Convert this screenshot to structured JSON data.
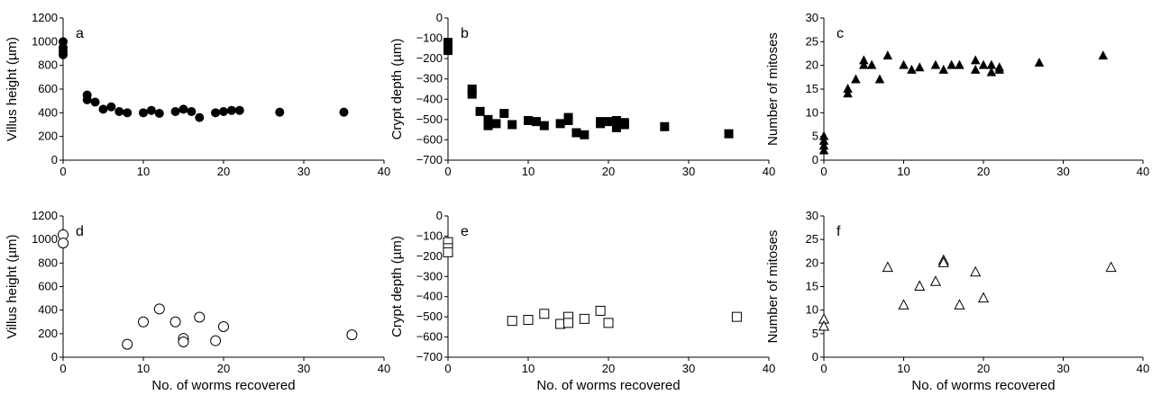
{
  "chart_data": [
    {
      "panel": "a",
      "type": "scatter",
      "marker": "filled-circle",
      "xlabel": "",
      "ylabel": "Villus height (µm)",
      "xlim": [
        0,
        40
      ],
      "ylim": [
        0,
        1200
      ],
      "xticks": [
        0,
        10,
        20,
        30,
        40
      ],
      "yticks": [
        0,
        200,
        400,
        600,
        800,
        1000,
        1200
      ],
      "x": [
        0,
        0,
        0,
        0,
        3,
        3,
        4,
        5,
        6,
        7,
        8,
        10,
        11,
        12,
        14,
        15,
        16,
        17,
        19,
        20,
        21,
        22,
        27,
        35
      ],
      "y": [
        1000,
        950,
        920,
        890,
        550,
        510,
        490,
        430,
        450,
        410,
        400,
        400,
        420,
        395,
        410,
        430,
        410,
        360,
        400,
        410,
        420,
        420,
        405,
        405
      ]
    },
    {
      "panel": "b",
      "type": "scatter",
      "marker": "filled-square",
      "xlabel": "",
      "ylabel": "Crypt depth (µm)",
      "xlim": [
        0,
        40
      ],
      "ylim": [
        -700,
        0
      ],
      "xticks": [
        0,
        10,
        20,
        30,
        40
      ],
      "yticks": [
        -700,
        -600,
        -500,
        -400,
        -300,
        -200,
        -100,
        0
      ],
      "x": [
        0,
        0,
        0,
        0,
        3,
        3,
        4,
        5,
        5,
        6,
        7,
        8,
        10,
        11,
        12,
        14,
        15,
        15,
        16,
        17,
        19,
        19,
        20,
        21,
        21,
        22,
        22,
        27,
        35
      ],
      "y": [
        -120,
        -140,
        -150,
        -160,
        -350,
        -375,
        -460,
        -500,
        -530,
        -520,
        -470,
        -525,
        -505,
        -510,
        -530,
        -520,
        -490,
        -505,
        -565,
        -575,
        -510,
        -520,
        -510,
        -505,
        -540,
        -515,
        -525,
        -535,
        -570
      ]
    },
    {
      "panel": "c",
      "type": "scatter",
      "marker": "filled-triangle",
      "xlabel": "",
      "ylabel": "Number of mitoses",
      "xlim": [
        0,
        40
      ],
      "ylim": [
        0,
        30
      ],
      "xticks": [
        0,
        10,
        20,
        30,
        40
      ],
      "yticks": [
        0,
        5,
        10,
        15,
        20,
        25,
        30
      ],
      "x": [
        0,
        0,
        0,
        0,
        3,
        3,
        4,
        5,
        5,
        6,
        7,
        8,
        10,
        11,
        12,
        14,
        15,
        16,
        17,
        19,
        19,
        20,
        21,
        21,
        22,
        22,
        27,
        35
      ],
      "y": [
        5,
        4,
        3,
        2,
        15,
        14,
        17,
        21,
        20,
        20,
        17,
        22,
        20,
        19,
        19.5,
        20,
        19,
        20,
        20,
        21,
        19,
        20,
        20,
        18.5,
        19.5,
        19,
        20.5,
        22
      ]
    },
    {
      "panel": "d",
      "type": "scatter",
      "marker": "open-circle",
      "xlabel": "No. of worms recovered",
      "ylabel": "Villus height (µm)",
      "xlim": [
        0,
        40
      ],
      "ylim": [
        0,
        1200
      ],
      "xticks": [
        0,
        10,
        20,
        30,
        40
      ],
      "yticks": [
        0,
        200,
        400,
        600,
        800,
        1000,
        1200
      ],
      "x": [
        0,
        0,
        8,
        10,
        12,
        14,
        15,
        15,
        17,
        19,
        20,
        36
      ],
      "y": [
        1040,
        970,
        110,
        300,
        410,
        300,
        160,
        130,
        340,
        140,
        260,
        190
      ]
    },
    {
      "panel": "e",
      "type": "scatter",
      "marker": "open-square",
      "xlabel": "No. of worms recovered",
      "ylabel": "Crypt depth (µm)",
      "xlim": [
        0,
        40
      ],
      "ylim": [
        -700,
        0
      ],
      "xticks": [
        0,
        10,
        20,
        30,
        40
      ],
      "yticks": [
        -700,
        -600,
        -500,
        -400,
        -300,
        -200,
        -100,
        0
      ],
      "x": [
        0,
        0,
        0,
        8,
        10,
        12,
        14,
        15,
        15,
        17,
        19,
        20,
        36
      ],
      "y": [
        -130,
        -160,
        -180,
        -520,
        -515,
        -485,
        -535,
        -500,
        -530,
        -510,
        -470,
        -530,
        -500
      ]
    },
    {
      "panel": "f",
      "type": "scatter",
      "marker": "open-triangle",
      "xlabel": "No. of worms recovered",
      "ylabel": "Number of mitoses",
      "xlim": [
        0,
        40
      ],
      "ylim": [
        0,
        30
      ],
      "xticks": [
        0,
        10,
        20,
        30,
        40
      ],
      "yticks": [
        0,
        5,
        10,
        15,
        20,
        25,
        30
      ],
      "x": [
        0,
        0,
        8,
        10,
        12,
        14,
        15,
        15,
        17,
        19,
        20,
        36
      ],
      "y": [
        8,
        6.5,
        19,
        11,
        15,
        16,
        20.5,
        20,
        11,
        18,
        12.5,
        19
      ]
    }
  ]
}
